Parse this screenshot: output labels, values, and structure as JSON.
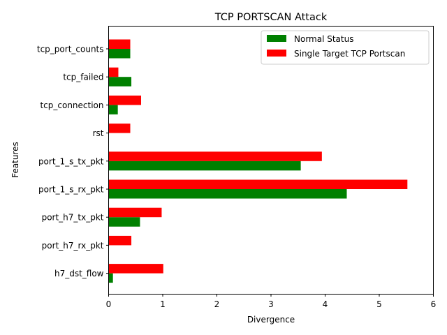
{
  "chart_data": {
    "type": "bar",
    "orientation": "horizontal",
    "title": "TCP PORTSCAN Attack",
    "xlabel": "Divergence",
    "ylabel": "Features",
    "xlim": [
      0,
      6
    ],
    "xticks": [
      "0",
      "1",
      "2",
      "3",
      "4",
      "5",
      "6"
    ],
    "grid": false,
    "legend_position": "top-right",
    "categories": [
      "tcp_port_counts",
      "tcp_failed",
      "tcp_connection",
      "rst",
      "port_1_s_tx_pkt",
      "port_1_s_rx_pkt",
      "port_h7_tx_pkt",
      "port_h7_rx_pkt",
      "h7_dst_flow"
    ],
    "series": [
      {
        "name": "Normal Status",
        "color": "#008000",
        "values": [
          0.4,
          0.42,
          0.17,
          0.0,
          3.55,
          4.4,
          0.58,
          0.0,
          0.08
        ]
      },
      {
        "name": "Single Target TCP Portscan",
        "color": "#ff0000",
        "values": [
          0.4,
          0.18,
          0.6,
          0.4,
          3.94,
          5.52,
          0.98,
          0.42,
          1.01
        ]
      }
    ]
  }
}
